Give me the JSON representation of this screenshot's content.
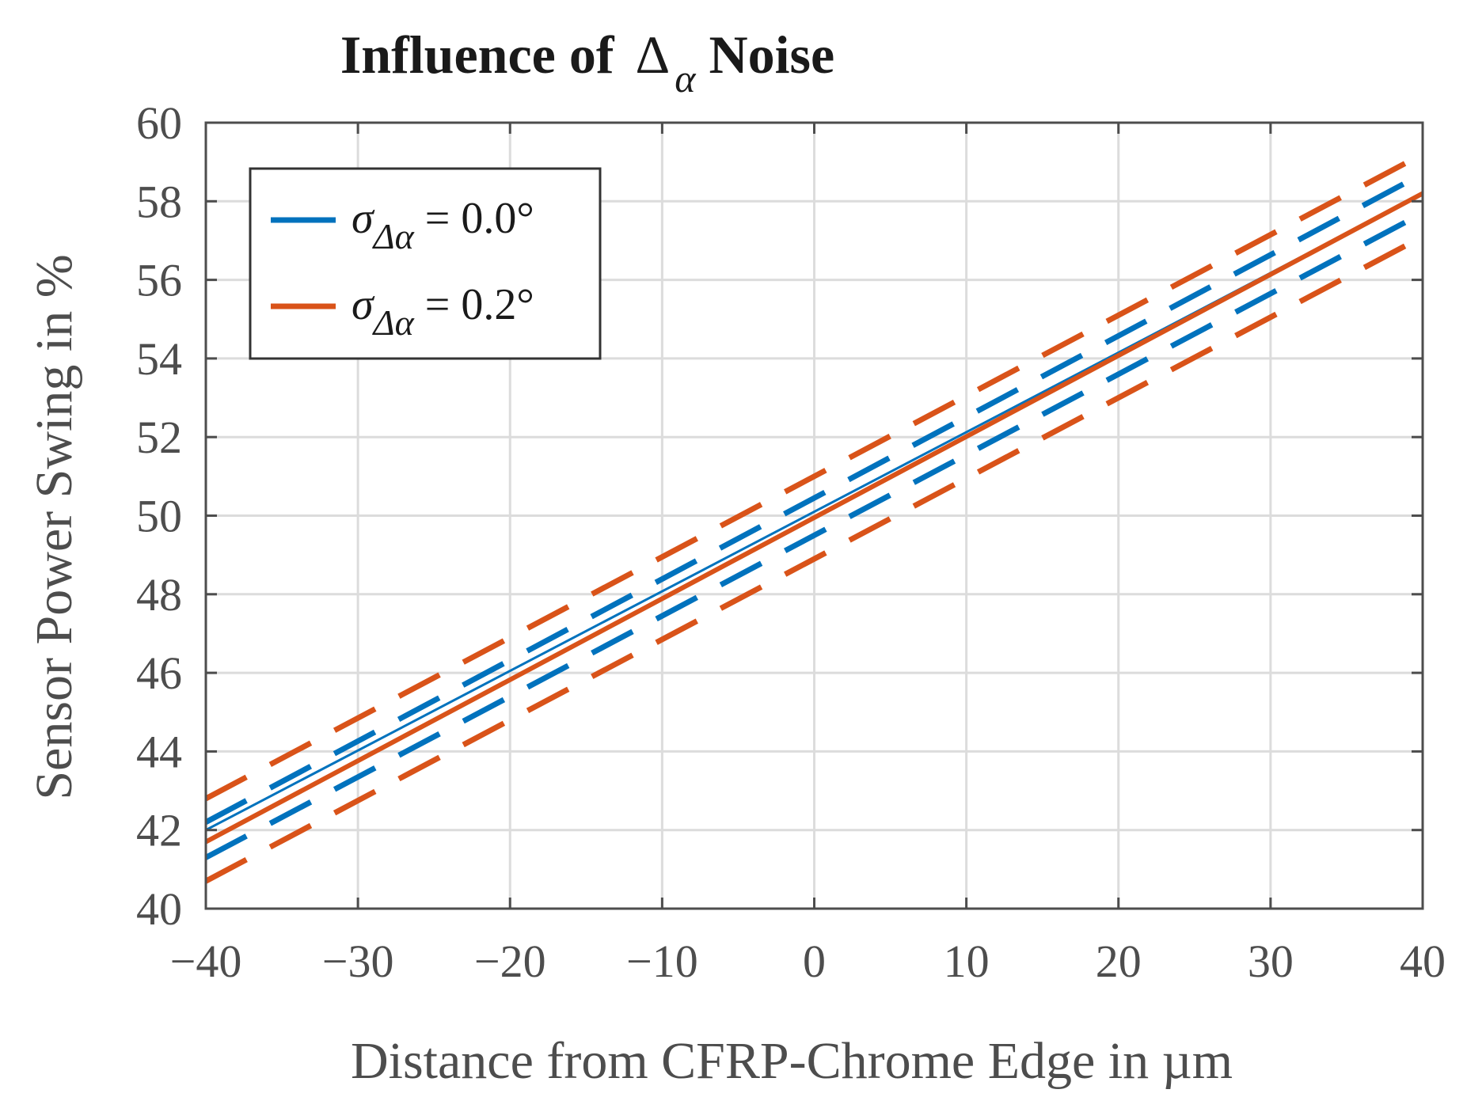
{
  "chart_data": {
    "type": "line",
    "title": {
      "prefix": "Influence of ",
      "symbol": "Δ",
      "subscript": "α",
      "suffix": " Noise"
    },
    "xlabel": "Distance from CFRP-Chrome Edge in µm",
    "ylabel": "Sensor Power Swing in %",
    "xlim": [
      -40,
      40
    ],
    "ylim": [
      40,
      60
    ],
    "x_ticks": [
      -40,
      -30,
      -20,
      -10,
      0,
      10,
      20,
      30,
      40
    ],
    "x_tick_labels": [
      "−40",
      "−30",
      "−20",
      "−10",
      "0",
      "10",
      "20",
      "30",
      "40"
    ],
    "y_ticks": [
      40,
      42,
      44,
      46,
      48,
      50,
      52,
      54,
      56,
      58,
      60
    ],
    "y_tick_labels": [
      "40",
      "42",
      "44",
      "46",
      "48",
      "50",
      "52",
      "54",
      "56",
      "58",
      "60"
    ],
    "grid": true,
    "legend_position": "top-left",
    "series": [
      {
        "name": "σΔα = 0.0°",
        "legend_symbol": "σ",
        "legend_subscript": "Δα",
        "legend_value": " = 0.0°",
        "color": "#0072BD",
        "x": [
          -40,
          40
        ],
        "mean": [
          42.0,
          58.2
        ],
        "upper": [
          42.2,
          58.7
        ],
        "lower": [
          41.3,
          57.7
        ]
      },
      {
        "name": "σΔα = 0.2°",
        "legend_symbol": "σ",
        "legend_subscript": "Δα",
        "legend_value": " = 0.2°",
        "color": "#D95319",
        "x": [
          -40,
          40
        ],
        "mean": [
          41.7,
          58.2
        ],
        "upper": [
          42.8,
          59.2
        ],
        "lower": [
          40.7,
          57.1
        ]
      }
    ]
  },
  "colors": {
    "axis": "#4d4d4d",
    "grid": "#dcdcdc",
    "legend_border": "#333333"
  }
}
